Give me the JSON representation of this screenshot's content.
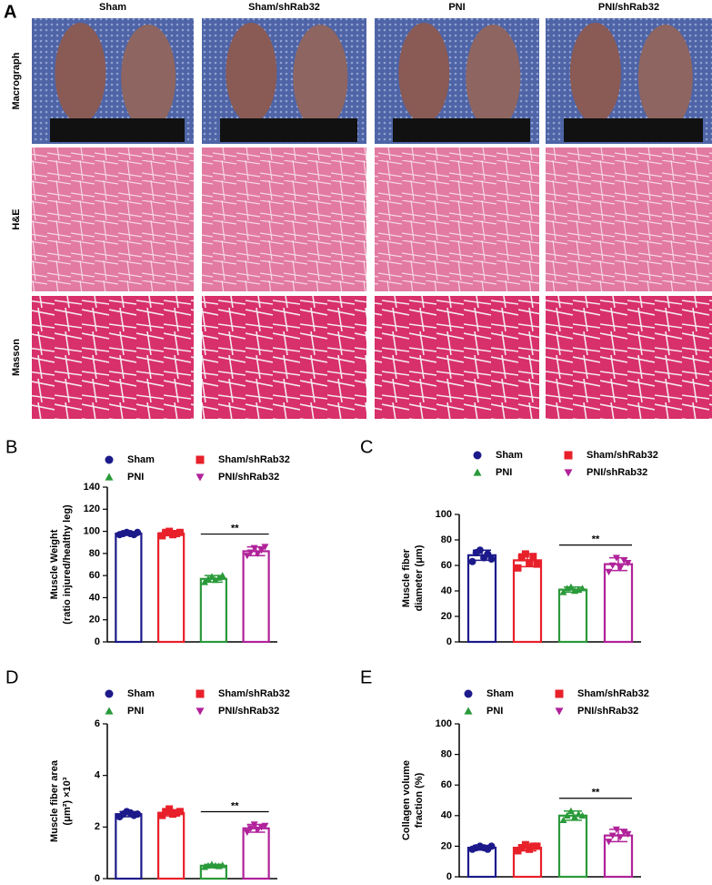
{
  "panel_a": {
    "label": "A",
    "columns": [
      "Sham",
      "Sham/shRab32",
      "PNI",
      "PNI/shRab32"
    ],
    "rows": [
      "Macrograph",
      "H&E",
      "Masson"
    ]
  },
  "chart_data": [
    {
      "type": "bar",
      "label": "B",
      "ylabel": [
        "Muscle Weight",
        "(ratio injured/healthy leg)"
      ],
      "categories": [
        "Sham",
        "Sham/shRab32",
        "PNI",
        "PNI/shRab32"
      ],
      "colors": [
        "#1c1a8a",
        "#e8202a",
        "#2a9a3a",
        "#b0229a"
      ],
      "markers": [
        "circle",
        "square",
        "triangle",
        "triangle-down"
      ],
      "values": [
        98,
        98,
        57,
        82
      ],
      "errors": [
        1.5,
        2,
        3,
        4
      ],
      "points": [
        [
          97,
          98,
          99,
          98,
          97,
          99
        ],
        [
          96,
          99,
          100,
          97,
          98,
          99
        ],
        [
          54,
          57,
          59,
          56,
          58,
          60
        ],
        [
          78,
          81,
          85,
          80,
          83,
          86
        ]
      ],
      "annotation": "**",
      "ylim": [
        0,
        140
      ],
      "yticks": [
        0,
        20,
        40,
        60,
        80,
        100,
        120,
        140
      ]
    },
    {
      "type": "bar",
      "label": "C",
      "ylabel": [
        "Muscle fiber",
        "diameter (μm)"
      ],
      "categories": [
        "Sham",
        "Sham/shRab32",
        "PNI",
        "PNI/shRab32"
      ],
      "colors": [
        "#1c1a8a",
        "#e8202a",
        "#2a9a3a",
        "#b0229a"
      ],
      "markers": [
        "circle",
        "square",
        "triangle",
        "triangle-down"
      ],
      "values": [
        68,
        64,
        41,
        61
      ],
      "errors": [
        4,
        5,
        2,
        5
      ],
      "points": [
        [
          63,
          70,
          72,
          66,
          69,
          65
        ],
        [
          58,
          66,
          69,
          62,
          67,
          61
        ],
        [
          39,
          42,
          43,
          40,
          41,
          42
        ],
        [
          55,
          60,
          66,
          58,
          64,
          62
        ]
      ],
      "annotation": "**",
      "ylim": [
        0,
        100
      ],
      "yticks": [
        0,
        20,
        40,
        60,
        80,
        100
      ]
    },
    {
      "type": "bar",
      "label": "D",
      "ylabel": [
        "Muscle fiber area",
        "(μm²) ×10³"
      ],
      "categories": [
        "Sham",
        "Sham/shRab32",
        "PNI",
        "PNI/shRab32"
      ],
      "colors": [
        "#1c1a8a",
        "#e8202a",
        "#2a9a3a",
        "#b0229a"
      ],
      "markers": [
        "circle",
        "square",
        "triangle",
        "triangle-down"
      ],
      "values": [
        2.5,
        2.55,
        0.5,
        1.95
      ],
      "errors": [
        0.1,
        0.12,
        0.05,
        0.15
      ],
      "points": [
        [
          2.4,
          2.5,
          2.6,
          2.55,
          2.45,
          2.5
        ],
        [
          2.45,
          2.6,
          2.7,
          2.5,
          2.55,
          2.6
        ],
        [
          0.45,
          0.5,
          0.55,
          0.5,
          0.48,
          0.52
        ],
        [
          1.8,
          1.95,
          2.1,
          1.9,
          2.0,
          2.05
        ]
      ],
      "annotation": "**",
      "ylim": [
        0,
        6
      ],
      "yticks": [
        0,
        2,
        4,
        6
      ]
    },
    {
      "type": "bar",
      "label": "E",
      "ylabel": [
        "Collagen volume",
        "fraction (%)"
      ],
      "categories": [
        "Sham",
        "Sham/shRab32",
        "PNI",
        "PNI/shRab32"
      ],
      "colors": [
        "#1c1a8a",
        "#e8202a",
        "#2a9a3a",
        "#b0229a"
      ],
      "markers": [
        "circle",
        "square",
        "triangle",
        "triangle-down"
      ],
      "values": [
        19,
        19,
        40,
        27
      ],
      "errors": [
        1.5,
        2,
        3,
        4
      ],
      "points": [
        [
          18,
          19,
          20,
          19,
          18,
          20
        ],
        [
          17,
          19,
          21,
          18,
          20,
          20
        ],
        [
          37,
          40,
          43,
          39,
          41,
          40
        ],
        [
          23,
          27,
          31,
          26,
          29,
          28
        ]
      ],
      "annotation": "**",
      "ylim": [
        0,
        100
      ],
      "yticks": [
        0,
        20,
        40,
        60,
        80,
        100
      ]
    }
  ]
}
